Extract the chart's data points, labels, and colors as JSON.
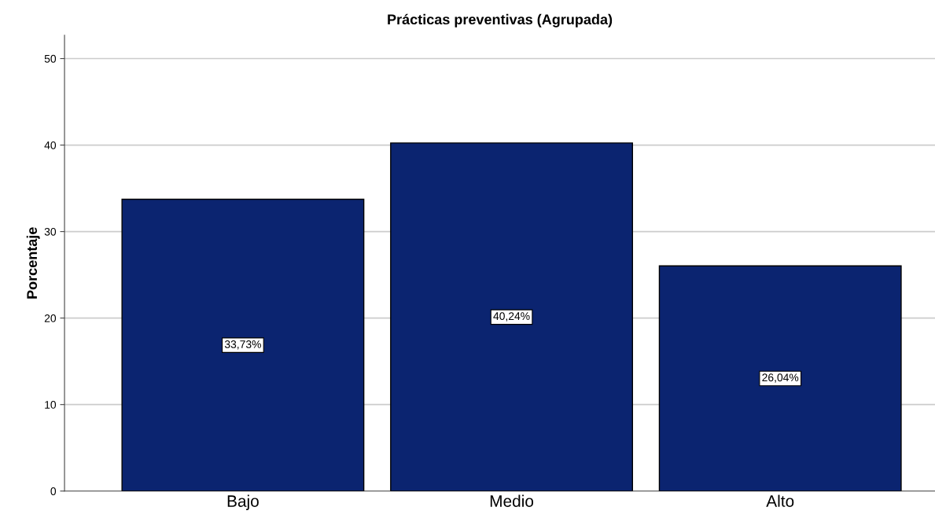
{
  "chart_data": {
    "type": "bar",
    "title": "Prácticas preventivas (Agrupada)",
    "ylabel": "Porcentaje",
    "categories": [
      "Bajo",
      "Medio",
      "Alto"
    ],
    "values": [
      33.73,
      40.24,
      26.04
    ],
    "value_labels": [
      "33,73%",
      "40,24%",
      "26,04%"
    ],
    "color": "#0b2470",
    "ylim": [
      0,
      52.7
    ],
    "yticks": [
      0,
      10,
      20,
      30,
      40,
      50
    ],
    "grid": "y",
    "legend": false
  }
}
